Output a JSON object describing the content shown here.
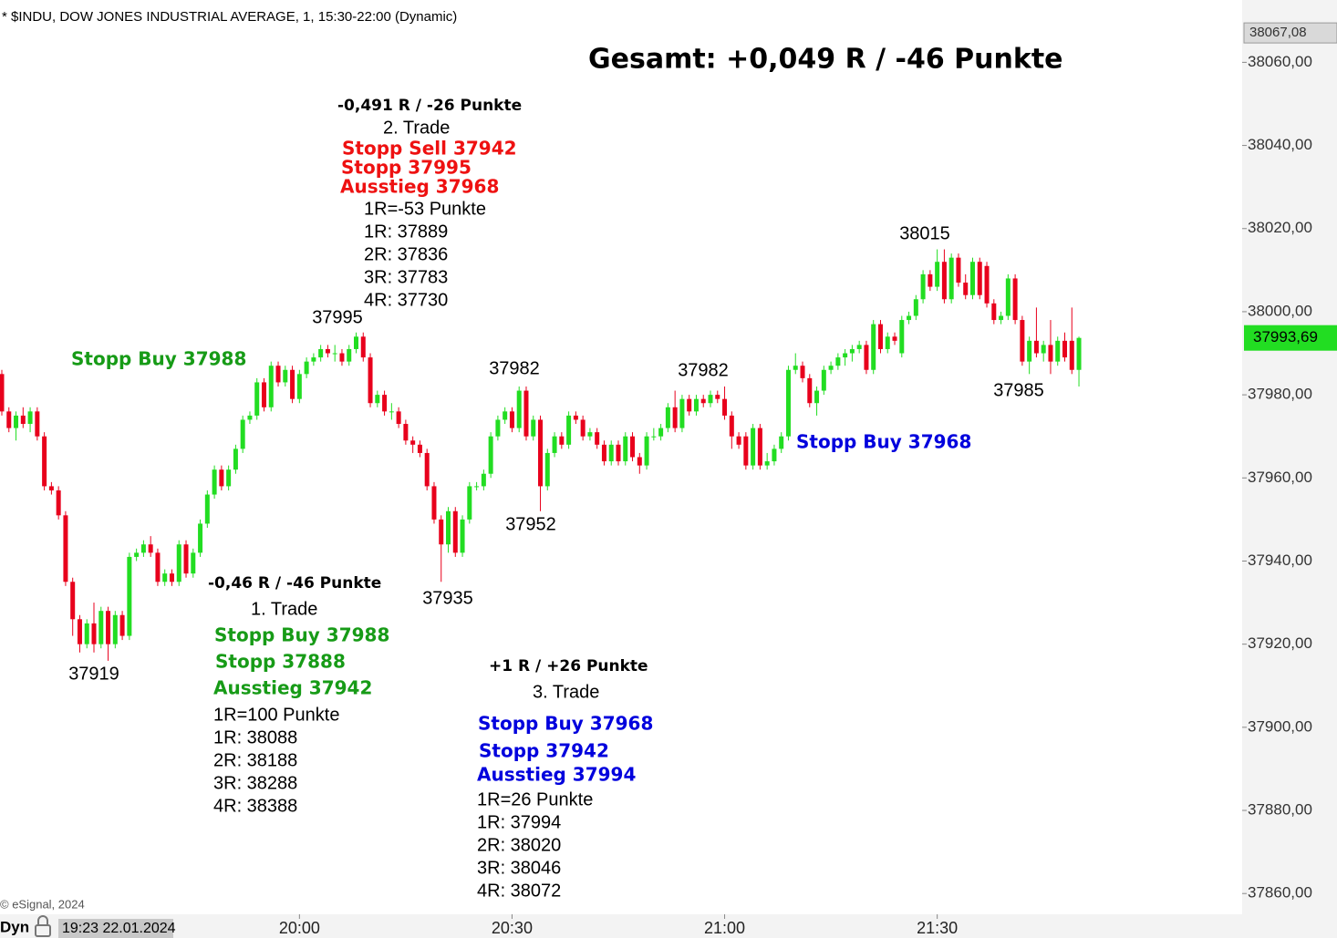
{
  "chart_data": {
    "type": "candlestick",
    "header": "* $INDU, DOW JONES INDUSTRIAL AVERAGE, 1, 15:30-22:00 (Dynamic)",
    "title": "Gesamt: +0,049 R / -46 Punkte",
    "up_color": "#22dd22",
    "down_color": "#e8001c",
    "ylim": [
      37855,
      38075
    ],
    "yticks": [
      {
        "value": 37860,
        "label": "37860,00"
      },
      {
        "value": 37880,
        "label": "37880,00"
      },
      {
        "value": 37900,
        "label": "37900,00"
      },
      {
        "value": 37920,
        "label": "37920,00"
      },
      {
        "value": 37940,
        "label": "37940,00"
      },
      {
        "value": 37960,
        "label": "37960,00"
      },
      {
        "value": 37980,
        "label": "37980,00"
      },
      {
        "value": 38000,
        "label": "38000,00"
      },
      {
        "value": 38020,
        "label": "38020,00"
      },
      {
        "value": 38040,
        "label": "38040,00"
      },
      {
        "value": 38060,
        "label": "38060,00"
      }
    ],
    "xticks": [
      "20:00",
      "20:30",
      "21:00",
      "21:30"
    ],
    "top_price": {
      "value": 38067.08,
      "label": "38067,08"
    },
    "last_price": {
      "value": 37993.69,
      "label": "37993,69",
      "color": "#22dd22"
    },
    "x": [
      "19:18",
      "19:19",
      "19:20",
      "19:21",
      "19:22",
      "19:23",
      "19:24",
      "19:25",
      "19:26",
      "19:27",
      "19:28",
      "19:29",
      "19:30",
      "19:31",
      "19:32",
      "19:33",
      "19:34",
      "19:35",
      "19:36",
      "19:37",
      "19:38",
      "19:39",
      "19:40",
      "19:41",
      "19:42",
      "19:43",
      "19:44",
      "19:45",
      "19:46",
      "19:47",
      "19:48",
      "19:49",
      "19:50",
      "19:51",
      "19:52",
      "19:53",
      "19:54",
      "19:55",
      "19:56",
      "19:57",
      "19:58",
      "19:59",
      "20:00",
      "20:01",
      "20:02",
      "20:03",
      "20:04",
      "20:05",
      "20:06",
      "20:07",
      "20:08",
      "20:09",
      "20:10",
      "20:11",
      "20:12",
      "20:13",
      "20:14",
      "20:15",
      "20:16",
      "20:17",
      "20:18",
      "20:19",
      "20:20",
      "20:21",
      "20:22",
      "20:23",
      "20:24",
      "20:25",
      "20:26",
      "20:27",
      "20:28",
      "20:29",
      "20:30",
      "20:31",
      "20:32",
      "20:33",
      "20:34",
      "20:35",
      "20:36",
      "20:37",
      "20:38",
      "20:39",
      "20:40",
      "20:41",
      "20:42",
      "20:43",
      "20:44",
      "20:45",
      "20:46",
      "20:47",
      "20:48",
      "20:49",
      "20:50",
      "20:51",
      "20:52",
      "20:53",
      "20:54",
      "20:55",
      "20:56",
      "20:57",
      "20:58",
      "20:59",
      "21:00",
      "21:01",
      "21:02",
      "21:03",
      "21:04",
      "21:05",
      "21:06",
      "21:07",
      "21:08",
      "21:09",
      "21:10",
      "21:11",
      "21:12",
      "21:13",
      "21:14",
      "21:15",
      "21:16",
      "21:17",
      "21:18",
      "21:19",
      "21:20",
      "21:21",
      "21:22",
      "21:23",
      "21:24",
      "21:25",
      "21:26",
      "21:27",
      "21:28",
      "21:29",
      "21:30",
      "21:31",
      "21:32",
      "21:33",
      "21:34",
      "21:35",
      "21:36",
      "21:37",
      "21:38",
      "21:39",
      "21:40",
      "21:41",
      "21:42",
      "21:43",
      "21:44",
      "21:45",
      "21:46",
      "21:47",
      "21:48",
      "21:49",
      "21:50"
    ],
    "ohlc": [
      [
        37985,
        37986,
        37975,
        37976
      ],
      [
        37976,
        37977,
        37971,
        37972
      ],
      [
        37972,
        37976,
        37969,
        37975
      ],
      [
        37975,
        37977,
        37972,
        37973
      ],
      [
        37973,
        37977,
        37971,
        37976
      ],
      [
        37976,
        37977,
        37969,
        37970
      ],
      [
        37970,
        37971,
        37957,
        37958
      ],
      [
        37958,
        37959,
        37956,
        37957
      ],
      [
        37957,
        37958,
        37950,
        37951
      ],
      [
        37951,
        37952,
        37934,
        37935
      ],
      [
        37935,
        37936,
        37922,
        37926
      ],
      [
        37926,
        37927,
        37918,
        37920
      ],
      [
        37920,
        37926,
        37919,
        37925
      ],
      [
        37925,
        37930,
        37918,
        37920
      ],
      [
        37920,
        37929,
        37919,
        37928
      ],
      [
        37928,
        37929,
        37916,
        37920
      ],
      [
        37920,
        37928,
        37919,
        37927
      ],
      [
        37927,
        37928,
        37921,
        37922
      ],
      [
        37922,
        37942,
        37921,
        37941
      ],
      [
        37941,
        37943,
        37940,
        37942
      ],
      [
        37942,
        37945,
        37941,
        37944
      ],
      [
        37944,
        37946,
        37941,
        37942
      ],
      [
        37942,
        37943,
        37934,
        37935
      ],
      [
        37935,
        37938,
        37934,
        37937
      ],
      [
        37937,
        37938,
        37934,
        37935
      ],
      [
        37935,
        37945,
        37934,
        37944
      ],
      [
        37944,
        37945,
        37936,
        37937
      ],
      [
        37937,
        37943,
        37936,
        37942
      ],
      [
        37942,
        37950,
        37941,
        37949
      ],
      [
        37949,
        37957,
        37948,
        37956
      ],
      [
        37956,
        37963,
        37955,
        37962
      ],
      [
        37962,
        37963,
        37957,
        37958
      ],
      [
        37958,
        37963,
        37957,
        37962
      ],
      [
        37962,
        37968,
        37961,
        37967
      ],
      [
        37967,
        37975,
        37966,
        37974
      ],
      [
        37974,
        37976,
        37973,
        37975
      ],
      [
        37975,
        37984,
        37974,
        37983
      ],
      [
        37983,
        37984,
        37976,
        37977
      ],
      [
        37977,
        37988,
        37976,
        37987
      ],
      [
        37987,
        37988,
        37982,
        37983
      ],
      [
        37983,
        37987,
        37982,
        37986
      ],
      [
        37986,
        37987,
        37978,
        37979
      ],
      [
        37979,
        37986,
        37978,
        37985
      ],
      [
        37985,
        37989,
        37984,
        37988
      ],
      [
        37988,
        37990,
        37987,
        37989
      ],
      [
        37989,
        37992,
        37988,
        37991
      ],
      [
        37991,
        37992,
        37989,
        37990
      ],
      [
        37990,
        37992,
        37988,
        37990
      ],
      [
        37990,
        37991,
        37987,
        37988
      ],
      [
        37988,
        37992,
        37987,
        37991
      ],
      [
        37991,
        37995,
        37990,
        37994
      ],
      [
        37994,
        37995,
        37988,
        37989
      ],
      [
        37989,
        37990,
        37977,
        37978
      ],
      [
        37978,
        37981,
        37977,
        37980
      ],
      [
        37980,
        37981,
        37975,
        37976
      ],
      [
        37976,
        37978,
        37974,
        37976
      ],
      [
        37976,
        37977,
        37972,
        37973
      ],
      [
        37973,
        37974,
        37968,
        37969
      ],
      [
        37969,
        37970,
        37966,
        37968
      ],
      [
        37968,
        37969,
        37965,
        37966
      ],
      [
        37966,
        37967,
        37957,
        37958
      ],
      [
        37958,
        37959,
        37949,
        37950
      ],
      [
        37950,
        37951,
        37935,
        37944
      ],
      [
        37944,
        37953,
        37942,
        37952
      ],
      [
        37952,
        37953,
        37941,
        37942
      ],
      [
        37942,
        37951,
        37941,
        37950
      ],
      [
        37950,
        37959,
        37949,
        37958
      ],
      [
        37958,
        37959,
        37957,
        37958
      ],
      [
        37958,
        37962,
        37957,
        37961
      ],
      [
        37961,
        37971,
        37960,
        37970
      ],
      [
        37970,
        37975,
        37969,
        37974
      ],
      [
        37974,
        37977,
        37973,
        37976
      ],
      [
        37976,
        37977,
        37971,
        37972
      ],
      [
        37972,
        37982,
        37971,
        37981
      ],
      [
        37981,
        37982,
        37969,
        37970
      ],
      [
        37970,
        37975,
        37969,
        37974
      ],
      [
        37974,
        37975,
        37952,
        37958
      ],
      [
        37958,
        37967,
        37957,
        37966
      ],
      [
        37966,
        37971,
        37965,
        37970
      ],
      [
        37970,
        37971,
        37967,
        37968
      ],
      [
        37968,
        37976,
        37967,
        37975
      ],
      [
        37975,
        37976,
        37973,
        37974
      ],
      [
        37974,
        37975,
        37969,
        37970
      ],
      [
        37970,
        37972,
        37969,
        37971
      ],
      [
        37971,
        37972,
        37967,
        37968
      ],
      [
        37968,
        37969,
        37963,
        37964
      ],
      [
        37964,
        37969,
        37963,
        37968
      ],
      [
        37968,
        37969,
        37963,
        37964
      ],
      [
        37964,
        37971,
        37963,
        37970
      ],
      [
        37970,
        37971,
        37964,
        37965
      ],
      [
        37965,
        37966,
        37961,
        37963
      ],
      [
        37963,
        37971,
        37962,
        37970
      ],
      [
        37970,
        37972,
        37969,
        37970
      ],
      [
        37970,
        37973,
        37969,
        37972
      ],
      [
        37972,
        37978,
        37971,
        37977
      ],
      [
        37977,
        37981,
        37971,
        37972
      ],
      [
        37972,
        37980,
        37971,
        37979
      ],
      [
        37979,
        37980,
        37975,
        37976
      ],
      [
        37976,
        37980,
        37975,
        37979
      ],
      [
        37979,
        37980,
        37977,
        37978
      ],
      [
        37978,
        37981,
        37977,
        37980
      ],
      [
        37980,
        37981,
        37978,
        37979
      ],
      [
        37979,
        37982,
        37974,
        37975
      ],
      [
        37975,
        37976,
        37967,
        37970
      ],
      [
        37970,
        37971,
        37967,
        37968
      ],
      [
        37970,
        37971,
        37962,
        37963
      ],
      [
        37963,
        37973,
        37962,
        37972
      ],
      [
        37972,
        37973,
        37962,
        37963
      ],
      [
        37963,
        37966,
        37962,
        37964
      ],
      [
        37964,
        37968,
        37963,
        37967
      ],
      [
        37967,
        37971,
        37966,
        37970
      ],
      [
        37970,
        37987,
        37969,
        37986
      ],
      [
        37986,
        37990,
        37985,
        37987
      ],
      [
        37987,
        37988,
        37983,
        37984
      ],
      [
        37984,
        37985,
        37977,
        37978
      ],
      [
        37978,
        37982,
        37975,
        37981
      ],
      [
        37981,
        37987,
        37980,
        37986
      ],
      [
        37986,
        37988,
        37985,
        37987
      ],
      [
        37987,
        37990,
        37986,
        37989
      ],
      [
        37989,
        37991,
        37987,
        37990
      ],
      [
        37990,
        37992,
        37988,
        37991
      ],
      [
        37991,
        37993,
        37990,
        37992
      ],
      [
        37992,
        37993,
        37985,
        37986
      ],
      [
        37986,
        37998,
        37985,
        37997
      ],
      [
        37997,
        37998,
        37990,
        37991
      ],
      [
        37991,
        37995,
        37990,
        37994
      ],
      [
        37994,
        37995,
        37992,
        37993
      ],
      [
        37990,
        37999,
        37989,
        37998
      ],
      [
        37998,
        38000,
        37997,
        37999
      ],
      [
        37999,
        38004,
        37998,
        38003
      ],
      [
        38003,
        38010,
        38002,
        38009
      ],
      [
        38009,
        38010,
        38005,
        38006
      ],
      [
        38006,
        38015,
        38005,
        38012
      ],
      [
        38012,
        38015,
        38002,
        38003
      ],
      [
        38003,
        38014,
        38002,
        38013
      ],
      [
        38013,
        38014,
        38006,
        38007
      ],
      [
        38007,
        38009,
        38003,
        38004
      ],
      [
        38004,
        38013,
        38003,
        38012
      ],
      [
        38012,
        38013,
        38003,
        38004
      ],
      [
        38011,
        38012,
        38001,
        38002
      ],
      [
        38002,
        38003,
        37997,
        37998
      ],
      [
        37998,
        38000,
        37997,
        37999
      ],
      [
        37999,
        38009,
        37998,
        38008
      ],
      [
        38008,
        38009,
        37997,
        37998
      ],
      [
        37998,
        37999,
        37987,
        37988
      ],
      [
        37988,
        37994,
        37985,
        37993
      ],
      [
        37993,
        38001,
        37989,
        37990
      ],
      [
        37990,
        37993,
        37988,
        37992
      ],
      [
        37992,
        37998,
        37985,
        37988
      ],
      [
        37988,
        37994,
        37987,
        37993
      ],
      [
        37993,
        37995,
        37988,
        37989
      ],
      [
        37993,
        38001,
        37985,
        37986
      ],
      [
        37986,
        37994,
        37982,
        37993.69
      ]
    ],
    "price_labels": [
      37995,
      37919,
      37935,
      37982,
      37952,
      37982,
      38015,
      37985
    ],
    "stop_labels": [
      {
        "text": "Stopp Buy 37988",
        "color": "#179b17"
      },
      {
        "text": "Stopp Buy 37968",
        "color": "#0000dd"
      }
    ],
    "trades": [
      {
        "result": "-0,46 R / -46 Punkte",
        "name": "1. Trade",
        "color": "#179b17",
        "orders": [
          "Stopp Buy 37988",
          "Stopp 37888",
          "Ausstieg 37942"
        ],
        "details": [
          "1R=100 Punkte",
          "1R: 38088",
          "2R: 38188",
          "3R: 38288",
          "4R: 38388"
        ]
      },
      {
        "result": "-0,491 R / -26 Punkte",
        "name": "2. Trade",
        "color": "#ee1111",
        "orders": [
          "Stopp Sell 37942",
          "Stopp 37995",
          "Ausstieg 37968"
        ],
        "details": [
          "1R=-53 Punkte",
          "1R: 37889",
          "2R: 37836",
          "3R: 37783",
          "4R: 37730"
        ]
      },
      {
        "result": "+1 R / +26 Punkte",
        "name": "3. Trade",
        "color": "#0000dd",
        "orders": [
          "Stopp Buy 37968",
          "Stopp 37942",
          "Ausstieg 37994"
        ],
        "details": [
          "1R=26 Punkte",
          "1R: 37994",
          "2R: 38020",
          "3R: 38046",
          "4R: 38072"
        ]
      }
    ],
    "footer": {
      "copyright": "© eSignal, 2024",
      "mode": "Dyn",
      "timestamp": "19:23 22.01.2024"
    }
  }
}
